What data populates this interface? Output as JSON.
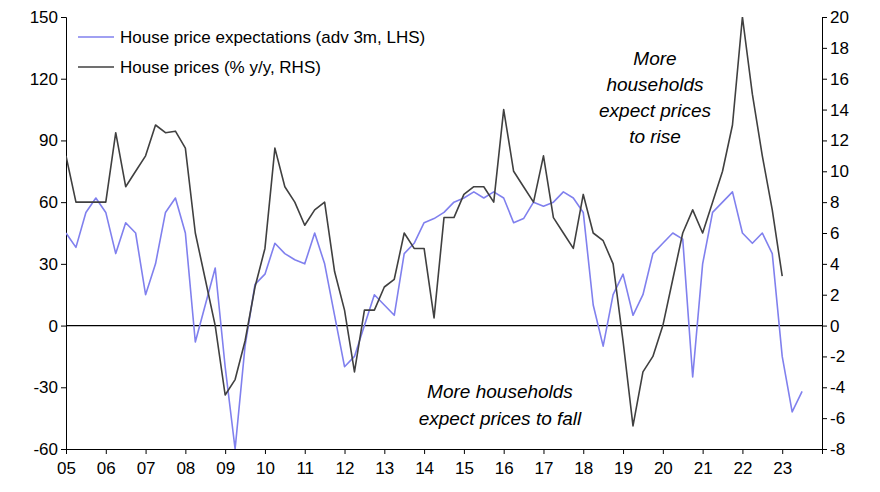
{
  "chart_data": {
    "type": "line",
    "x": [
      2005,
      2005.25,
      2005.5,
      2005.75,
      2006,
      2006.25,
      2006.5,
      2006.75,
      2007,
      2007.25,
      2007.5,
      2007.75,
      2008,
      2008.25,
      2008.5,
      2008.75,
      2009,
      2009.25,
      2009.5,
      2009.75,
      2010,
      2010.25,
      2010.5,
      2010.75,
      2011,
      2011.25,
      2011.5,
      2011.75,
      2012,
      2012.25,
      2012.5,
      2012.75,
      2013,
      2013.25,
      2013.5,
      2013.75,
      2014,
      2014.25,
      2014.5,
      2014.75,
      2015,
      2015.25,
      2015.5,
      2015.75,
      2016,
      2016.25,
      2016.5,
      2016.75,
      2017,
      2017.25,
      2017.5,
      2017.75,
      2018,
      2018.25,
      2018.5,
      2018.75,
      2019,
      2019.25,
      2019.5,
      2019.75,
      2020,
      2020.25,
      2020.5,
      2020.75,
      2021,
      2021.25,
      2021.5,
      2021.75,
      2022,
      2022.25,
      2022.5,
      2022.75,
      2023,
      2023.25,
      2023.5
    ],
    "series": [
      {
        "name": "House price expectations (adv 3m, LHS)",
        "color": "#8080ee",
        "axis": "y",
        "values": [
          45,
          38,
          55,
          62,
          55,
          35,
          50,
          45,
          15,
          30,
          55,
          62,
          45,
          -8,
          10,
          28,
          -20,
          -60,
          -10,
          20,
          25,
          40,
          35,
          32,
          30,
          45,
          30,
          5,
          -20,
          -15,
          0,
          15,
          10,
          5,
          35,
          40,
          50,
          52,
          55,
          60,
          62,
          65,
          62,
          65,
          62,
          50,
          52,
          60,
          58,
          60,
          65,
          62,
          55,
          10,
          -10,
          15,
          25,
          5,
          15,
          35,
          40,
          45,
          42,
          -25,
          30,
          55,
          60,
          65,
          45,
          40,
          45,
          35,
          -15,
          -42,
          -32
        ]
      },
      {
        "name": "House prices (% y/y, RHS)",
        "color": "#404040",
        "axis": "y2",
        "values": [
          11,
          8,
          8,
          8,
          8,
          12.5,
          9,
          10,
          11,
          13,
          12.5,
          12.6,
          11.5,
          6,
          3,
          0,
          -4.5,
          -3.5,
          -1,
          2.5,
          5,
          11.5,
          9,
          8,
          6.5,
          7.5,
          8,
          3.5,
          1,
          -3,
          1,
          1,
          2.5,
          3,
          6,
          5,
          5,
          0.5,
          7,
          7,
          8.5,
          9,
          9,
          8,
          14,
          10,
          9,
          8,
          11,
          7,
          6,
          5,
          8.5,
          6,
          5.5,
          4,
          -1,
          -6.5,
          -3,
          -2,
          0,
          3,
          6,
          7.5,
          6,
          8,
          10,
          13,
          20,
          15,
          11,
          7.5,
          3.2,
          null,
          null
        ]
      }
    ],
    "xlim": [
      2005,
      2024
    ],
    "xticks": [
      {
        "value": 2005,
        "label": "05"
      },
      {
        "value": 2006,
        "label": "06"
      },
      {
        "value": 2007,
        "label": "07"
      },
      {
        "value": 2008,
        "label": "08"
      },
      {
        "value": 2009,
        "label": "09"
      },
      {
        "value": 2010,
        "label": "10"
      },
      {
        "value": 2011,
        "label": "11"
      },
      {
        "value": 2012,
        "label": "12"
      },
      {
        "value": 2013,
        "label": "13"
      },
      {
        "value": 2014,
        "label": "14"
      },
      {
        "value": 2015,
        "label": "15"
      },
      {
        "value": 2016,
        "label": "16"
      },
      {
        "value": 2017,
        "label": "17"
      },
      {
        "value": 2018,
        "label": "18"
      },
      {
        "value": 2019,
        "label": "19"
      },
      {
        "value": 2020,
        "label": "20"
      },
      {
        "value": 2021,
        "label": "21"
      },
      {
        "value": 2022,
        "label": "22"
      },
      {
        "value": 2023,
        "label": "23"
      }
    ],
    "ylim": [
      -60,
      150
    ],
    "yticks": [
      -60,
      -30,
      0,
      30,
      60,
      90,
      120,
      150
    ],
    "y2lim": [
      -8,
      20
    ],
    "y2ticks": [
      -8,
      -6,
      -4,
      -2,
      0,
      2,
      4,
      6,
      8,
      10,
      12,
      14,
      16,
      18,
      20
    ],
    "legend": "upper left",
    "grid": false,
    "annotations": [
      {
        "text": [
          "More",
          "households",
          "expect prices",
          "to rise"
        ]
      },
      {
        "text": [
          "More households",
          "expect prices to fall"
        ]
      }
    ]
  }
}
